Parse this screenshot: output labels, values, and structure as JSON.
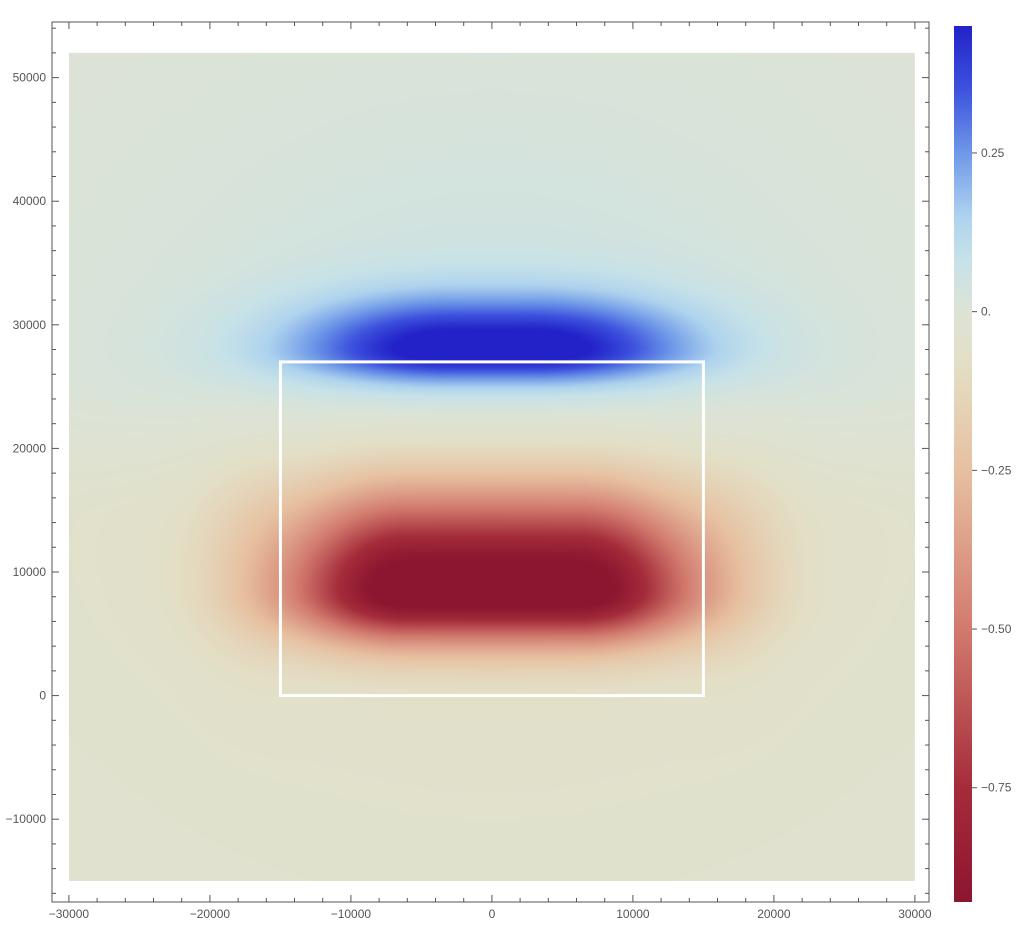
{
  "chart_data": {
    "type": "heatmap",
    "title": "",
    "xlabel": "",
    "ylabel": "",
    "xlim": [
      -30000,
      30000
    ],
    "ylim": [
      -15000,
      52000
    ],
    "frame_xlim": [
      -31200,
      31000
    ],
    "frame_ylim": [
      -16700,
      54500
    ],
    "x_ticks": [
      {
        "value": -30000,
        "label": "−30000"
      },
      {
        "value": -20000,
        "label": "−20000"
      },
      {
        "value": -10000,
        "label": "−10000"
      },
      {
        "value": 0,
        "label": "0"
      },
      {
        "value": 10000,
        "label": "10000"
      },
      {
        "value": 20000,
        "label": "20000"
      },
      {
        "value": 30000,
        "label": "30000"
      }
    ],
    "y_ticks": [
      {
        "value": -10000,
        "label": "−10000"
      },
      {
        "value": 0,
        "label": "0"
      },
      {
        "value": 10000,
        "label": "10000"
      },
      {
        "value": 20000,
        "label": "20000"
      },
      {
        "value": 30000,
        "label": "30000"
      },
      {
        "value": 40000,
        "label": "40000"
      },
      {
        "value": 50000,
        "label": "50000"
      }
    ],
    "field": {
      "description": "field value over x,y",
      "positive_peak": {
        "x": 0,
        "y": 28000,
        "value": 0.45
      },
      "negative_peak": {
        "x": 0,
        "y": 8500,
        "value": -0.93
      }
    },
    "rectangle": {
      "x0": -15000,
      "x1": 15000,
      "y0": 0,
      "y1": 27000,
      "color": "#ffffff"
    },
    "colorbar": {
      "min": -0.93,
      "max": 0.45,
      "ticks": [
        {
          "value": 0.25,
          "label": "0.25"
        },
        {
          "value": 0,
          "label": "0."
        },
        {
          "value": -0.25,
          "label": "−0.25"
        },
        {
          "value": -0.5,
          "label": "−0.50"
        },
        {
          "value": -0.75,
          "label": "−0.75"
        }
      ],
      "colors": [
        {
          "value": -0.93,
          "color": "#8c1530"
        },
        {
          "value": -0.75,
          "color": "#a42c3a"
        },
        {
          "value": -0.5,
          "color": "#d27a6e"
        },
        {
          "value": -0.25,
          "color": "#e7c0a0"
        },
        {
          "value": -0.08,
          "color": "#e3dfc6"
        },
        {
          "value": 0,
          "color": "#dde3d5"
        },
        {
          "value": 0.08,
          "color": "#c7e2e8"
        },
        {
          "value": 0.15,
          "color": "#aed3ee"
        },
        {
          "value": 0.25,
          "color": "#6e98e8"
        },
        {
          "value": 0.35,
          "color": "#3d52de"
        },
        {
          "value": 0.45,
          "color": "#2222c8"
        }
      ]
    }
  }
}
